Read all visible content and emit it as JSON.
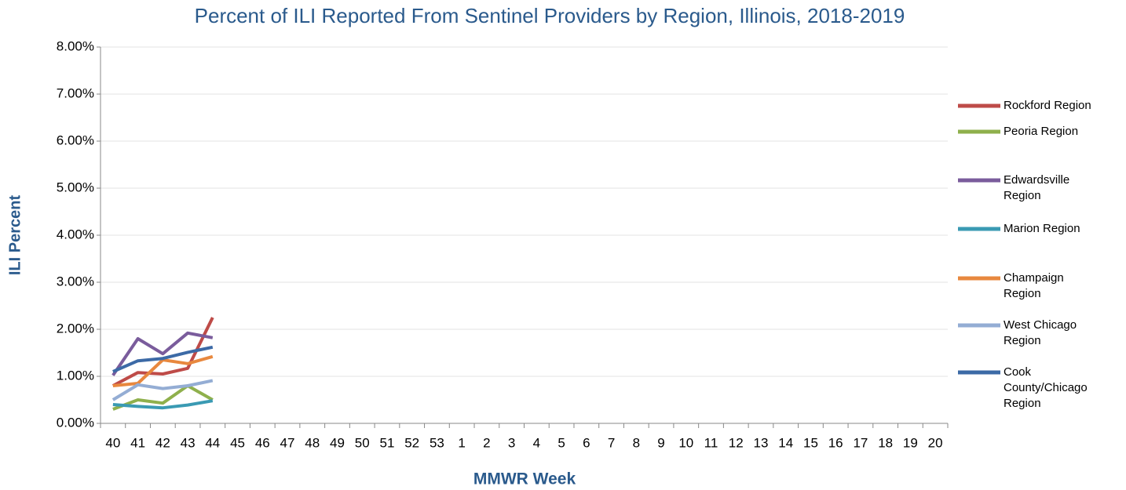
{
  "chart_data": {
    "type": "line",
    "title": "Percent of ILI Reported From Sentinel Providers by Region, Illinois, 2018-2019",
    "x_label": "MMWR Week",
    "y_label": "ILI Percent",
    "categories": [
      "40",
      "41",
      "42",
      "43",
      "44",
      "45",
      "46",
      "47",
      "48",
      "49",
      "50",
      "51",
      "52",
      "53",
      "1",
      "2",
      "3",
      "4",
      "5",
      "6",
      "7",
      "8",
      "9",
      "10",
      "11",
      "12",
      "13",
      "14",
      "15",
      "16",
      "17",
      "18",
      "19",
      "20"
    ],
    "ylim": [
      0,
      8
    ],
    "yticks": [
      {
        "value": 0,
        "label": "0.00%"
      },
      {
        "value": 1,
        "label": "1.00%"
      },
      {
        "value": 2,
        "label": "2.00%"
      },
      {
        "value": 3,
        "label": "3.00%"
      },
      {
        "value": 4,
        "label": "4.00%"
      },
      {
        "value": 5,
        "label": "5.00%"
      },
      {
        "value": 6,
        "label": "6.00%"
      },
      {
        "value": 7,
        "label": "7.00%"
      },
      {
        "value": 8,
        "label": "8.00%"
      }
    ],
    "grid": true,
    "legend": "right",
    "series": [
      {
        "name": "Rockford Region",
        "color": "#be4b48",
        "values": [
          0.8,
          1.08,
          1.05,
          1.17,
          2.25,
          null,
          null,
          null,
          null,
          null,
          null,
          null,
          null,
          null,
          null,
          null,
          null,
          null,
          null,
          null,
          null,
          null,
          null,
          null,
          null,
          null,
          null,
          null,
          null,
          null,
          null,
          null,
          null,
          null
        ]
      },
      {
        "name": "Peoria Region",
        "color": "#8fb04c",
        "values": [
          0.3,
          0.5,
          0.43,
          0.8,
          0.5,
          null,
          null,
          null,
          null,
          null,
          null,
          null,
          null,
          null,
          null,
          null,
          null,
          null,
          null,
          null,
          null,
          null,
          null,
          null,
          null,
          null,
          null,
          null,
          null,
          null,
          null,
          null,
          null,
          null
        ]
      },
      {
        "name": "Edwardsville Region",
        "color": "#7a5c9c",
        "values": [
          1.02,
          1.8,
          1.48,
          1.92,
          1.82,
          null,
          null,
          null,
          null,
          null,
          null,
          null,
          null,
          null,
          null,
          null,
          null,
          null,
          null,
          null,
          null,
          null,
          null,
          null,
          null,
          null,
          null,
          null,
          null,
          null,
          null,
          null,
          null,
          null
        ]
      },
      {
        "name": "Marion Region",
        "color": "#3a9ab3",
        "values": [
          0.4,
          0.36,
          0.33,
          0.39,
          0.48,
          null,
          null,
          null,
          null,
          null,
          null,
          null,
          null,
          null,
          null,
          null,
          null,
          null,
          null,
          null,
          null,
          null,
          null,
          null,
          null,
          null,
          null,
          null,
          null,
          null,
          null,
          null,
          null,
          null
        ]
      },
      {
        "name": "Champaign Region",
        "color": "#e8883e",
        "values": [
          0.8,
          0.85,
          1.35,
          1.27,
          1.42,
          null,
          null,
          null,
          null,
          null,
          null,
          null,
          null,
          null,
          null,
          null,
          null,
          null,
          null,
          null,
          null,
          null,
          null,
          null,
          null,
          null,
          null,
          null,
          null,
          null,
          null,
          null,
          null,
          null
        ]
      },
      {
        "name": "West Chicago Region",
        "color": "#94add4",
        "values": [
          0.5,
          0.82,
          0.74,
          0.8,
          0.91,
          null,
          null,
          null,
          null,
          null,
          null,
          null,
          null,
          null,
          null,
          null,
          null,
          null,
          null,
          null,
          null,
          null,
          null,
          null,
          null,
          null,
          null,
          null,
          null,
          null,
          null,
          null,
          null,
          null
        ]
      },
      {
        "name": "Cook County/Chicago Region",
        "color": "#3c6aa6",
        "values": [
          1.1,
          1.33,
          1.38,
          1.51,
          1.62,
          null,
          null,
          null,
          null,
          null,
          null,
          null,
          null,
          null,
          null,
          null,
          null,
          null,
          null,
          null,
          null,
          null,
          null,
          null,
          null,
          null,
          null,
          null,
          null,
          null,
          null,
          null,
          null,
          null
        ]
      }
    ]
  }
}
